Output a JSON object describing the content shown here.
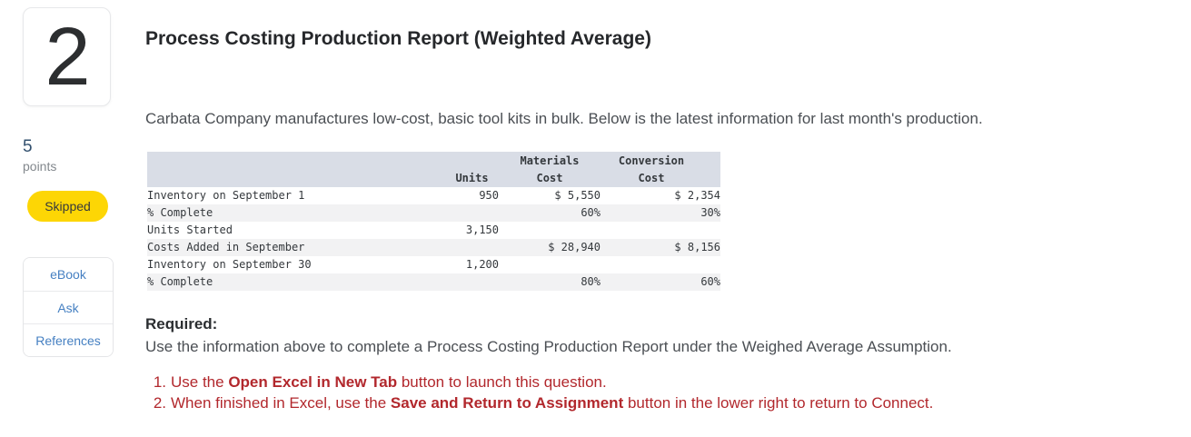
{
  "question": {
    "number": "2",
    "points_value": "5",
    "points_label": "points",
    "status": "Skipped"
  },
  "toolbox": {
    "items": [
      {
        "label": "eBook"
      },
      {
        "label": "Ask"
      },
      {
        "label": "References"
      }
    ]
  },
  "main": {
    "title": "Process Costing Production Report (Weighted Average)",
    "intro": "Carbata Company manufactures low-cost, basic tool kits in bulk. Below is the latest information for last month's production.",
    "required_label": "Required:",
    "required_text": "Use the information above to complete a Process Costing Production Report under the Weighed Average Assumption."
  },
  "table": {
    "columns": [
      {
        "line1": " ",
        "line2": " "
      },
      {
        "line1": " ",
        "line2": "Units"
      },
      {
        "line1": "Materials",
        "line2": "Cost"
      },
      {
        "line1": "Conversion",
        "line2": "Cost"
      }
    ],
    "rows": [
      {
        "label": "Inventory on September 1",
        "units": "950",
        "materials": "$ 5,550",
        "conversion": "$ 2,354"
      },
      {
        "label": "% Complete",
        "units": "",
        "materials": "60%",
        "conversion": "30%"
      },
      {
        "label": "Units Started",
        "units": "3,150",
        "materials": "",
        "conversion": ""
      },
      {
        "label": "Costs Added in September",
        "units": "",
        "materials": "$ 28,940",
        "conversion": "$ 8,156"
      },
      {
        "label": "Inventory on September 30",
        "units": "1,200",
        "materials": "",
        "conversion": ""
      },
      {
        "label": "% Complete",
        "units": "",
        "materials": "80%",
        "conversion": "60%"
      }
    ]
  },
  "instructions": {
    "items": [
      {
        "number": "1.",
        "pre": "Use the ",
        "bold": "Open Excel in New Tab",
        "post": " button to launch this question."
      },
      {
        "number": "2.",
        "pre": "When finished in Excel, use the ",
        "bold": "Save and Return to Assignment",
        "post": " button in the lower right to return to Connect."
      }
    ]
  },
  "colors": {
    "status_badge_yellow": "#fdd605",
    "link_blue": "#4680c2",
    "instruction_red": "#b2282d",
    "table_header_bg": "#d9dde6",
    "table_stripe_bg": "#f2f2f3"
  }
}
